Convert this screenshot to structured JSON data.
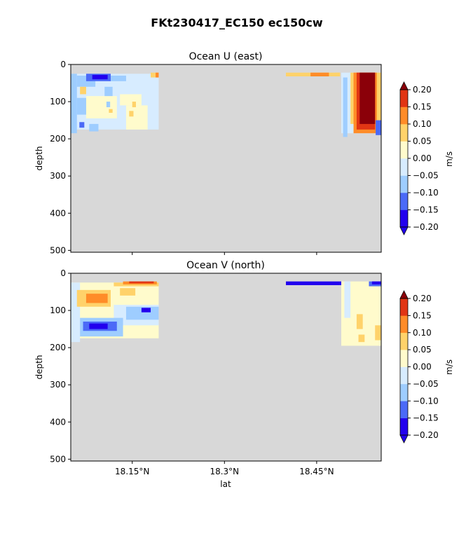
{
  "chart_data": {
    "title": "FKt230417_EC150 ec150cw",
    "type": "heatmap",
    "colormap": [
      "#2200ee",
      "#4b6af7",
      "#9ecdff",
      "#d7ecff",
      "#fffbcc",
      "#ffd26a",
      "#ff8c28",
      "#e13514",
      "#8b0009"
    ],
    "missing_color": "#d8d8d8",
    "colorbar": {
      "ticks": [
        "0.20",
        "0.15",
        "0.10",
        "0.05",
        "0.00",
        "−0.05",
        "−0.10",
        "−0.15",
        "−0.20"
      ],
      "levels": [
        -0.2,
        -0.15,
        -0.1,
        -0.05,
        0.0,
        0.05,
        0.1,
        0.15,
        0.2
      ],
      "extend": "both"
    },
    "xlim": [
      18.05,
      18.555
    ],
    "ylim": [
      505,
      0
    ],
    "panels": [
      {
        "title": "Ocean U (east)",
        "ylabel": "depth",
        "cbar_label": "m/s",
        "yticks": [
          "0",
          "100",
          "200",
          "300",
          "400",
          "500"
        ],
        "ytick_values": [
          0,
          100,
          200,
          300,
          400,
          500
        ],
        "xticks": [],
        "xlabel": "",
        "regions": [
          {
            "lat0": 18.05,
            "lat1": 18.193,
            "d0": 25,
            "d1": 175,
            "v": -0.03
          },
          {
            "lat0": 18.05,
            "lat1": 18.06,
            "d0": 25,
            "d1": 185,
            "v": -0.07
          },
          {
            "lat0": 18.06,
            "lat1": 18.09,
            "d0": 30,
            "d1": 60,
            "v": -0.07
          },
          {
            "lat0": 18.075,
            "lat1": 18.115,
            "d0": 25,
            "d1": 45,
            "v": -0.12
          },
          {
            "lat0": 18.085,
            "lat1": 18.11,
            "d0": 28,
            "d1": 40,
            "v": -0.17
          },
          {
            "lat0": 18.115,
            "lat1": 18.14,
            "d0": 30,
            "d1": 45,
            "v": -0.07
          },
          {
            "lat0": 18.065,
            "lat1": 18.075,
            "d0": 60,
            "d1": 80,
            "v": 0.07
          },
          {
            "lat0": 18.075,
            "lat1": 18.125,
            "d0": 85,
            "d1": 145,
            "v": 0.02
          },
          {
            "lat0": 18.13,
            "lat1": 18.165,
            "d0": 80,
            "d1": 110,
            "v": 0.02
          },
          {
            "lat0": 18.14,
            "lat1": 18.175,
            "d0": 110,
            "d1": 175,
            "v": 0.02
          },
          {
            "lat0": 18.105,
            "lat1": 18.118,
            "d0": 60,
            "d1": 85,
            "v": -0.07
          },
          {
            "lat0": 18.108,
            "lat1": 18.114,
            "d0": 100,
            "d1": 115,
            "v": -0.07
          },
          {
            "lat0": 18.06,
            "lat1": 18.075,
            "d0": 90,
            "d1": 135,
            "v": -0.07
          },
          {
            "lat0": 18.112,
            "lat1": 18.118,
            "d0": 120,
            "d1": 130,
            "v": 0.07
          },
          {
            "lat0": 18.15,
            "lat1": 18.156,
            "d0": 100,
            "d1": 115,
            "v": 0.07
          },
          {
            "lat0": 18.145,
            "lat1": 18.152,
            "d0": 125,
            "d1": 140,
            "v": 0.07
          },
          {
            "lat0": 18.064,
            "lat1": 18.072,
            "d0": 155,
            "d1": 170,
            "v": -0.12
          },
          {
            "lat0": 18.08,
            "lat1": 18.095,
            "d0": 160,
            "d1": 180,
            "v": -0.07
          },
          {
            "lat0": 18.18,
            "lat1": 18.193,
            "d0": 22,
            "d1": 35,
            "v": 0.07
          },
          {
            "lat0": 18.188,
            "lat1": 18.193,
            "d0": 22,
            "d1": 35,
            "v": 0.12
          },
          {
            "lat0": 18.4,
            "lat1": 18.488,
            "d0": 22,
            "d1": 32,
            "v": 0.07
          },
          {
            "lat0": 18.44,
            "lat1": 18.47,
            "d0": 22,
            "d1": 32,
            "v": 0.12
          },
          {
            "lat0": 18.48,
            "lat1": 18.488,
            "d0": 22,
            "d1": 32,
            "v": 0.07
          },
          {
            "lat0": 18.49,
            "lat1": 18.555,
            "d0": 22,
            "d1": 185,
            "v": -0.03
          },
          {
            "lat0": 18.493,
            "lat1": 18.5,
            "d0": 35,
            "d1": 195,
            "v": -0.07
          },
          {
            "lat0": 18.505,
            "lat1": 18.555,
            "d0": 22,
            "d1": 160,
            "v": 0.07
          },
          {
            "lat0": 18.51,
            "lat1": 18.548,
            "d0": 22,
            "d1": 185,
            "v": 0.12
          },
          {
            "lat0": 18.515,
            "lat1": 18.545,
            "d0": 22,
            "d1": 175,
            "v": 0.17
          },
          {
            "lat0": 18.52,
            "lat1": 18.545,
            "d0": 22,
            "d1": 160,
            "v": 0.22
          },
          {
            "lat0": 18.546,
            "lat1": 18.555,
            "d0": 150,
            "d1": 190,
            "v": -0.12
          }
        ]
      },
      {
        "title": "Ocean V (north)",
        "ylabel": "depth",
        "cbar_label": "m/s",
        "yticks": [
          "0",
          "100",
          "200",
          "300",
          "400",
          "500"
        ],
        "ytick_values": [
          0,
          100,
          200,
          300,
          400,
          500
        ],
        "xticks": [
          "18.15°N",
          "18.3°N",
          "18.45°N"
        ],
        "xtick_values": [
          18.15,
          18.3,
          18.45
        ],
        "xlabel": "lat",
        "regions": [
          {
            "lat0": 18.05,
            "lat1": 18.193,
            "d0": 25,
            "d1": 175,
            "v": 0.03
          },
          {
            "lat0": 18.05,
            "lat1": 18.065,
            "d0": 25,
            "d1": 185,
            "v": -0.03
          },
          {
            "lat0": 18.06,
            "lat1": 18.115,
            "d0": 45,
            "d1": 90,
            "v": 0.07
          },
          {
            "lat0": 18.075,
            "lat1": 18.11,
            "d0": 55,
            "d1": 80,
            "v": 0.12
          },
          {
            "lat0": 18.13,
            "lat1": 18.155,
            "d0": 40,
            "d1": 60,
            "v": 0.07
          },
          {
            "lat0": 18.12,
            "lat1": 18.193,
            "d0": 85,
            "d1": 140,
            "v": -0.03
          },
          {
            "lat0": 18.14,
            "lat1": 18.193,
            "d0": 90,
            "d1": 125,
            "v": -0.07
          },
          {
            "lat0": 18.165,
            "lat1": 18.18,
            "d0": 93,
            "d1": 105,
            "v": -0.17
          },
          {
            "lat0": 18.065,
            "lat1": 18.135,
            "d0": 120,
            "d1": 170,
            "v": -0.07
          },
          {
            "lat0": 18.07,
            "lat1": 18.125,
            "d0": 130,
            "d1": 155,
            "v": -0.12
          },
          {
            "lat0": 18.08,
            "lat1": 18.11,
            "d0": 135,
            "d1": 150,
            "v": -0.17
          },
          {
            "lat0": 18.12,
            "lat1": 18.193,
            "d0": 25,
            "d1": 35,
            "v": 0.07
          },
          {
            "lat0": 18.135,
            "lat1": 18.19,
            "d0": 22,
            "d1": 30,
            "v": 0.12
          },
          {
            "lat0": 18.145,
            "lat1": 18.185,
            "d0": 22,
            "d1": 27,
            "v": 0.17
          },
          {
            "lat0": 18.4,
            "lat1": 18.49,
            "d0": 22,
            "d1": 32,
            "v": -0.17
          },
          {
            "lat0": 18.49,
            "lat1": 18.555,
            "d0": 22,
            "d1": 195,
            "v": 0.02
          },
          {
            "lat0": 18.495,
            "lat1": 18.505,
            "d0": 22,
            "d1": 120,
            "v": -0.03
          },
          {
            "lat0": 18.535,
            "lat1": 18.555,
            "d0": 22,
            "d1": 35,
            "v": -0.12
          },
          {
            "lat0": 18.54,
            "lat1": 18.555,
            "d0": 22,
            "d1": 30,
            "v": -0.17
          },
          {
            "lat0": 18.515,
            "lat1": 18.525,
            "d0": 110,
            "d1": 150,
            "v": 0.07
          },
          {
            "lat0": 18.545,
            "lat1": 18.555,
            "d0": 140,
            "d1": 180,
            "v": 0.07
          },
          {
            "lat0": 18.518,
            "lat1": 18.528,
            "d0": 165,
            "d1": 185,
            "v": 0.07
          }
        ]
      }
    ]
  }
}
